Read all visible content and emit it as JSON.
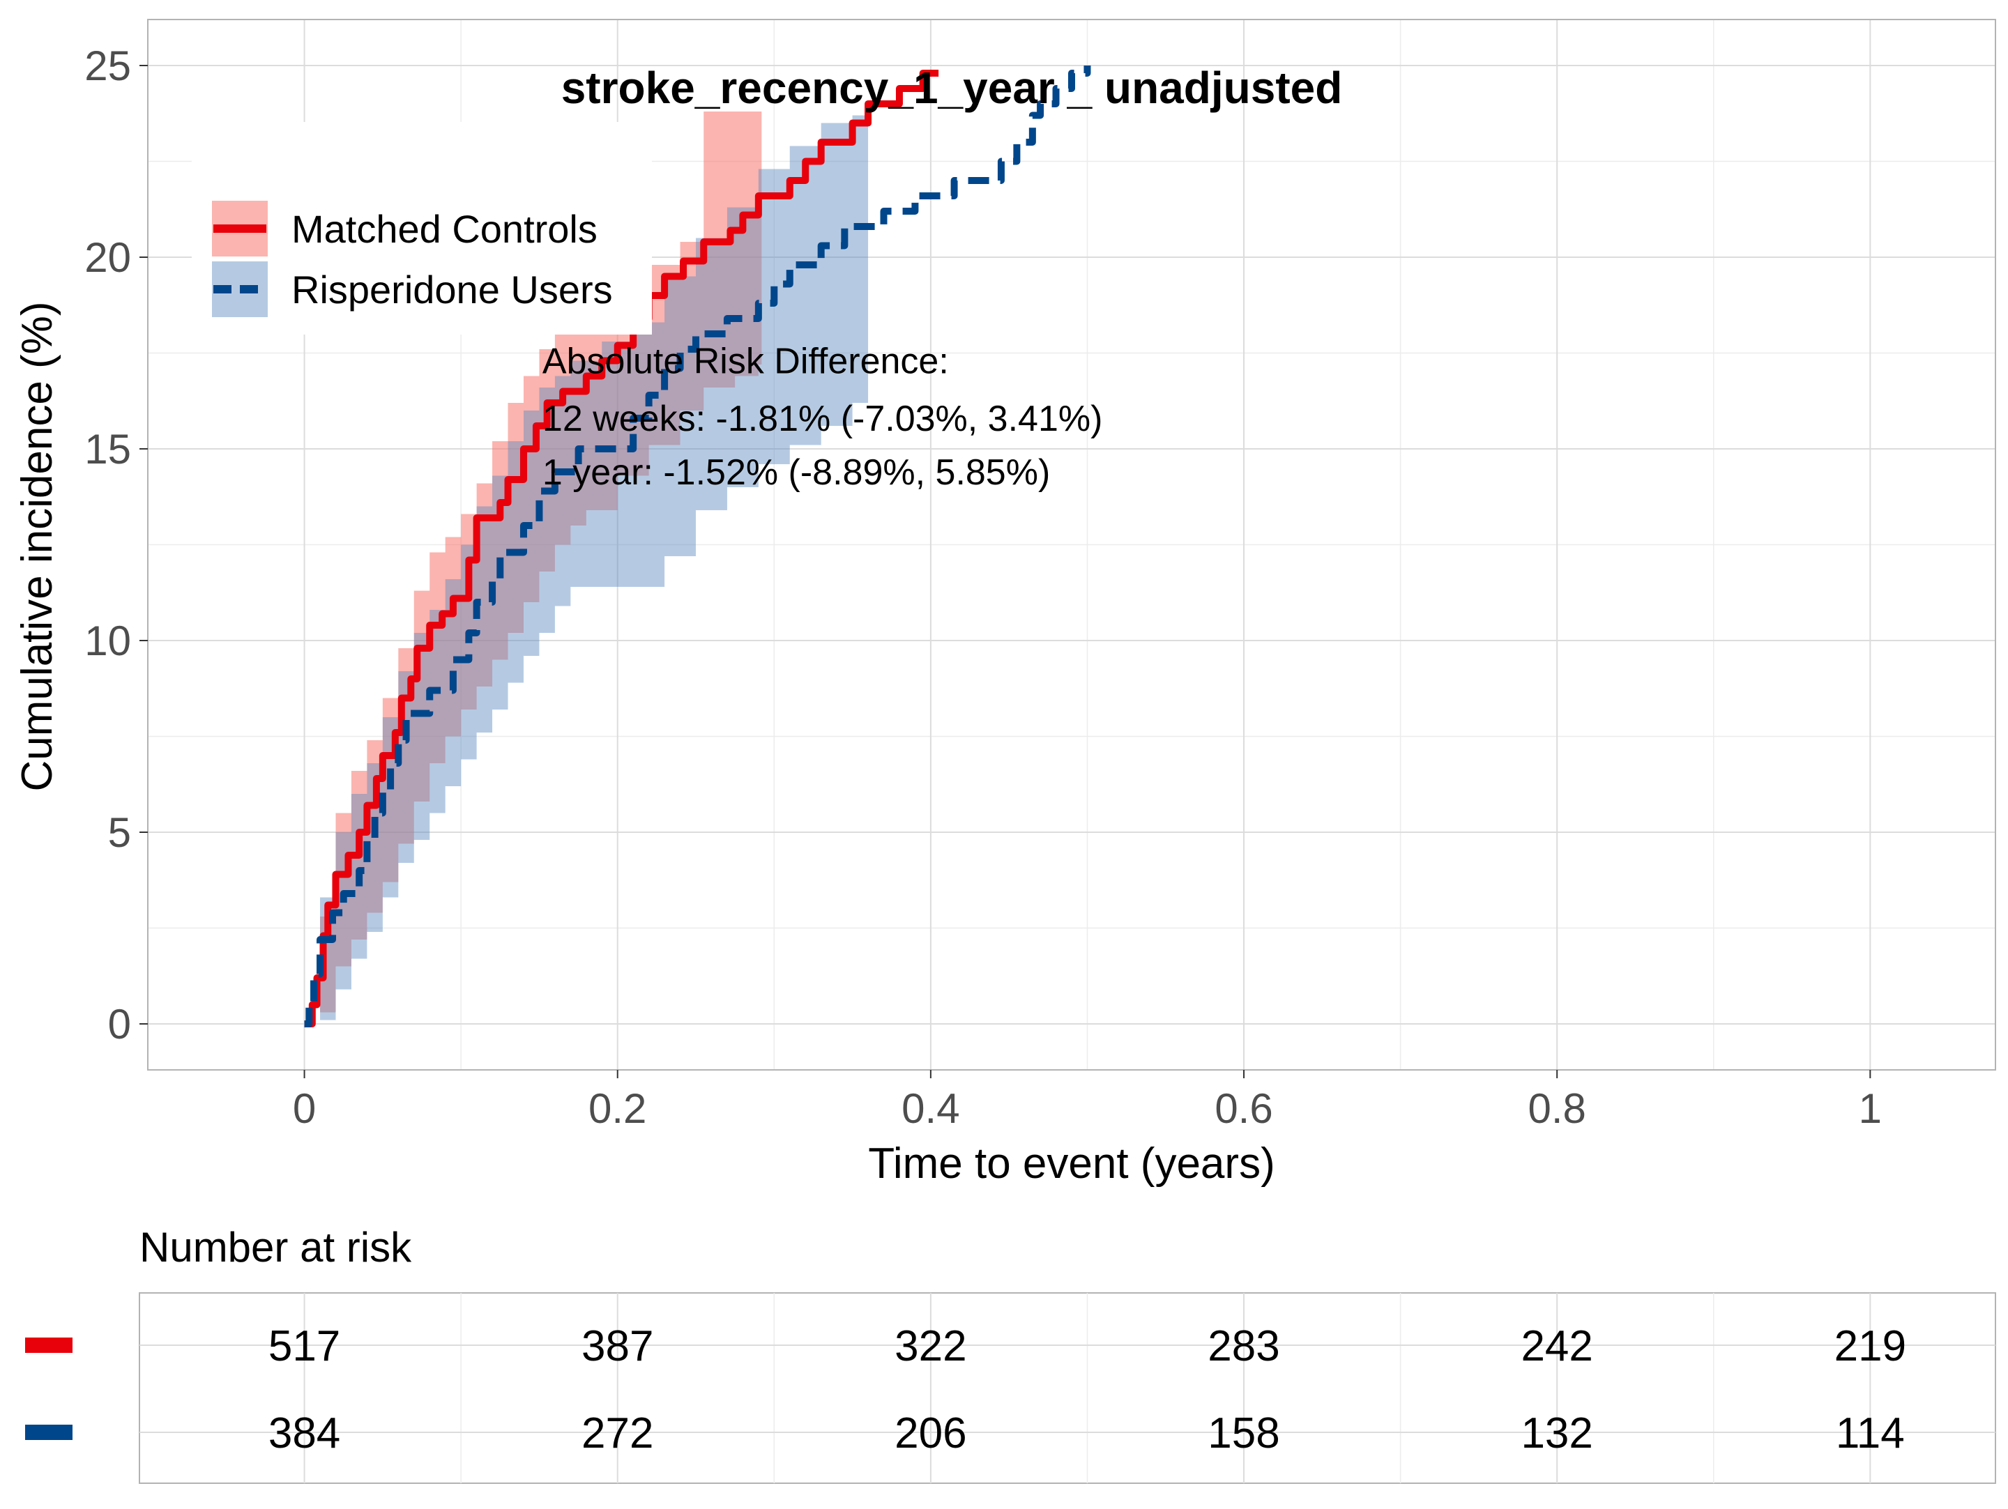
{
  "chart_data": {
    "type": "line",
    "subtype": "cumulative-incidence-step",
    "title": "stroke_recency_1_year _ unadjusted",
    "xlabel": "Time to event (years)",
    "ylabel": "Cumulative incidence (%)",
    "xlim": [
      -0.1,
      1.08
    ],
    "ylim": [
      -1.2,
      26.2
    ],
    "xticks": [
      0,
      0.2,
      0.4,
      0.6,
      0.8,
      1
    ],
    "xtick_labels": [
      "0",
      "0.2",
      "0.4",
      "0.6",
      "0.8",
      "1"
    ],
    "yticks": [
      0,
      5,
      10,
      15,
      20,
      25
    ],
    "ytick_labels": [
      "0",
      "5",
      "10",
      "15",
      "20",
      "25"
    ],
    "grid": true,
    "legend_position": "top-left",
    "series": [
      {
        "name": "Matched Controls",
        "color": "#E8000B",
        "line_style": "solid",
        "band_color": "#F8766D",
        "points": [
          [
            0,
            0
          ],
          [
            0.005,
            0
          ],
          [
            0.005,
            0.5
          ],
          [
            0.008,
            0.5
          ],
          [
            0.008,
            1.2
          ],
          [
            0.012,
            1.2
          ],
          [
            0.012,
            2.3
          ],
          [
            0.015,
            2.3
          ],
          [
            0.015,
            3.1
          ],
          [
            0.02,
            3.1
          ],
          [
            0.02,
            3.9
          ],
          [
            0.028,
            3.9
          ],
          [
            0.028,
            4.4
          ],
          [
            0.035,
            4.4
          ],
          [
            0.035,
            5.0
          ],
          [
            0.04,
            5.0
          ],
          [
            0.04,
            5.7
          ],
          [
            0.046,
            5.7
          ],
          [
            0.046,
            6.4
          ],
          [
            0.05,
            6.4
          ],
          [
            0.05,
            7.0
          ],
          [
            0.058,
            7.0
          ],
          [
            0.058,
            7.6
          ],
          [
            0.062,
            7.6
          ],
          [
            0.062,
            8.5
          ],
          [
            0.068,
            8.5
          ],
          [
            0.068,
            9.0
          ],
          [
            0.072,
            9.0
          ],
          [
            0.072,
            9.8
          ],
          [
            0.08,
            9.8
          ],
          [
            0.08,
            10.4
          ],
          [
            0.088,
            10.4
          ],
          [
            0.088,
            10.7
          ],
          [
            0.095,
            10.7
          ],
          [
            0.095,
            11.1
          ],
          [
            0.105,
            11.1
          ],
          [
            0.105,
            12.1
          ],
          [
            0.11,
            12.1
          ],
          [
            0.11,
            13.2
          ],
          [
            0.125,
            13.2
          ],
          [
            0.125,
            13.6
          ],
          [
            0.13,
            13.6
          ],
          [
            0.13,
            14.2
          ],
          [
            0.14,
            14.2
          ],
          [
            0.14,
            15.0
          ],
          [
            0.148,
            15.0
          ],
          [
            0.148,
            15.6
          ],
          [
            0.155,
            15.6
          ],
          [
            0.155,
            16.2
          ],
          [
            0.165,
            16.2
          ],
          [
            0.165,
            16.5
          ],
          [
            0.18,
            16.5
          ],
          [
            0.18,
            16.9
          ],
          [
            0.19,
            16.9
          ],
          [
            0.19,
            17.3
          ],
          [
            0.2,
            17.3
          ],
          [
            0.2,
            17.7
          ],
          [
            0.21,
            17.7
          ],
          [
            0.21,
            18.4
          ],
          [
            0.22,
            18.4
          ],
          [
            0.22,
            19.0
          ],
          [
            0.23,
            19.0
          ],
          [
            0.23,
            19.5
          ],
          [
            0.242,
            19.5
          ],
          [
            0.242,
            19.9
          ],
          [
            0.255,
            19.9
          ],
          [
            0.255,
            20.4
          ],
          [
            0.272,
            20.4
          ],
          [
            0.272,
            20.7
          ],
          [
            0.28,
            20.7
          ],
          [
            0.28,
            21.1
          ],
          [
            0.29,
            21.1
          ],
          [
            0.29,
            21.6
          ],
          [
            0.31,
            21.6
          ],
          [
            0.31,
            22.0
          ],
          [
            0.32,
            22.0
          ],
          [
            0.32,
            22.5
          ],
          [
            0.33,
            22.5
          ],
          [
            0.33,
            23.0
          ],
          [
            0.35,
            23.0
          ],
          [
            0.35,
            23.5
          ],
          [
            0.36,
            23.5
          ],
          [
            0.36,
            24.0
          ],
          [
            0.38,
            24.0
          ],
          [
            0.38,
            24.4
          ],
          [
            0.395,
            24.4
          ],
          [
            0.395,
            24.8
          ],
          [
            0.405,
            24.8
          ]
        ],
        "ci_band": [
          [
            0,
            0,
            0
          ],
          [
            0.01,
            0.3,
            2.8
          ],
          [
            0.02,
            1.5,
            5.5
          ],
          [
            0.03,
            2.2,
            6.6
          ],
          [
            0.04,
            2.9,
            7.4
          ],
          [
            0.05,
            3.7,
            8.5
          ],
          [
            0.06,
            4.7,
            9.8
          ],
          [
            0.07,
            5.8,
            11.3
          ],
          [
            0.08,
            6.8,
            12.3
          ],
          [
            0.09,
            7.5,
            12.7
          ],
          [
            0.1,
            8.2,
            13.3
          ],
          [
            0.11,
            8.8,
            14.1
          ],
          [
            0.12,
            9.5,
            15.2
          ],
          [
            0.13,
            10.2,
            16.2
          ],
          [
            0.14,
            11.0,
            16.9
          ],
          [
            0.15,
            11.8,
            17.6
          ],
          [
            0.16,
            12.5,
            18.0
          ],
          [
            0.17,
            13.0,
            18.3
          ],
          [
            0.18,
            13.4,
            18.8
          ],
          [
            0.2,
            14.3,
            19.3
          ],
          [
            0.22,
            15.1,
            19.8
          ],
          [
            0.24,
            16.0,
            20.4
          ],
          [
            0.255,
            16.6,
            23.8
          ],
          [
            0.275,
            16.9,
            23.8
          ],
          [
            0.29,
            17.2,
            23.8
          ],
          [
            0.292,
            17.2,
            23.8
          ]
        ]
      },
      {
        "name": "Risperidone Users",
        "color": "#00468B",
        "line_style": "dashed",
        "band_color": "#5A8ABE",
        "points": [
          [
            0,
            0
          ],
          [
            0.003,
            0
          ],
          [
            0.003,
            0.5
          ],
          [
            0.006,
            0.5
          ],
          [
            0.006,
            1.3
          ],
          [
            0.01,
            1.3
          ],
          [
            0.01,
            2.2
          ],
          [
            0.018,
            2.2
          ],
          [
            0.018,
            2.9
          ],
          [
            0.025,
            2.9
          ],
          [
            0.025,
            3.4
          ],
          [
            0.035,
            3.4
          ],
          [
            0.035,
            4.0
          ],
          [
            0.04,
            4.0
          ],
          [
            0.04,
            4.8
          ],
          [
            0.045,
            4.8
          ],
          [
            0.045,
            5.5
          ],
          [
            0.05,
            5.5
          ],
          [
            0.05,
            6.1
          ],
          [
            0.055,
            6.1
          ],
          [
            0.055,
            6.8
          ],
          [
            0.06,
            6.8
          ],
          [
            0.06,
            7.4
          ],
          [
            0.065,
            7.4
          ],
          [
            0.065,
            8.1
          ],
          [
            0.08,
            8.1
          ],
          [
            0.08,
            8.7
          ],
          [
            0.095,
            8.7
          ],
          [
            0.095,
            9.5
          ],
          [
            0.105,
            9.5
          ],
          [
            0.105,
            10.2
          ],
          [
            0.11,
            10.2
          ],
          [
            0.11,
            11.0
          ],
          [
            0.12,
            11.0
          ],
          [
            0.12,
            11.6
          ],
          [
            0.125,
            11.6
          ],
          [
            0.125,
            12.3
          ],
          [
            0.14,
            12.3
          ],
          [
            0.14,
            13.0
          ],
          [
            0.15,
            13.0
          ],
          [
            0.15,
            13.9
          ],
          [
            0.16,
            13.9
          ],
          [
            0.16,
            14.4
          ],
          [
            0.175,
            14.4
          ],
          [
            0.175,
            15.0
          ],
          [
            0.21,
            15.0
          ],
          [
            0.21,
            15.8
          ],
          [
            0.22,
            15.8
          ],
          [
            0.22,
            16.4
          ],
          [
            0.23,
            16.4
          ],
          [
            0.23,
            17.1
          ],
          [
            0.24,
            17.1
          ],
          [
            0.24,
            17.6
          ],
          [
            0.25,
            17.6
          ],
          [
            0.25,
            18.0
          ],
          [
            0.27,
            18.0
          ],
          [
            0.27,
            18.4
          ],
          [
            0.29,
            18.4
          ],
          [
            0.29,
            18.8
          ],
          [
            0.3,
            18.8
          ],
          [
            0.3,
            19.3
          ],
          [
            0.31,
            19.3
          ],
          [
            0.31,
            19.8
          ],
          [
            0.33,
            19.8
          ],
          [
            0.33,
            20.3
          ],
          [
            0.345,
            20.3
          ],
          [
            0.345,
            20.8
          ],
          [
            0.37,
            20.8
          ],
          [
            0.37,
            21.2
          ],
          [
            0.39,
            21.2
          ],
          [
            0.39,
            21.6
          ],
          [
            0.415,
            21.6
          ],
          [
            0.415,
            22.0
          ],
          [
            0.445,
            22.0
          ],
          [
            0.445,
            22.5
          ],
          [
            0.455,
            22.5
          ],
          [
            0.455,
            23.0
          ],
          [
            0.465,
            23.0
          ],
          [
            0.465,
            23.7
          ],
          [
            0.47,
            23.7
          ],
          [
            0.47,
            24.0
          ],
          [
            0.48,
            24.0
          ],
          [
            0.48,
            24.4
          ],
          [
            0.49,
            24.4
          ],
          [
            0.49,
            24.8
          ],
          [
            0.5,
            24.8
          ],
          [
            0.5,
            25.0
          ]
        ],
        "ci_band": [
          [
            0,
            0,
            0
          ],
          [
            0.01,
            0.1,
            3.3
          ],
          [
            0.02,
            0.9,
            5.0
          ],
          [
            0.03,
            1.7,
            6.0
          ],
          [
            0.04,
            2.4,
            6.8
          ],
          [
            0.05,
            3.3,
            8.0
          ],
          [
            0.06,
            4.2,
            9.2
          ],
          [
            0.07,
            4.8,
            10.2
          ],
          [
            0.08,
            5.5,
            10.8
          ],
          [
            0.09,
            6.2,
            11.6
          ],
          [
            0.1,
            6.9,
            12.5
          ],
          [
            0.11,
            7.6,
            13.5
          ],
          [
            0.12,
            8.2,
            14.3
          ],
          [
            0.13,
            8.9,
            15.2
          ],
          [
            0.14,
            9.6,
            16.0
          ],
          [
            0.15,
            10.2,
            16.6
          ],
          [
            0.16,
            10.9,
            16.9
          ],
          [
            0.17,
            11.4,
            17.3
          ],
          [
            0.19,
            11.4,
            17.8
          ],
          [
            0.21,
            11.4,
            18.3
          ],
          [
            0.23,
            12.2,
            19.5
          ],
          [
            0.25,
            13.4,
            20.5
          ],
          [
            0.27,
            14.0,
            21.3
          ],
          [
            0.29,
            14.6,
            22.3
          ],
          [
            0.31,
            15.1,
            22.9
          ],
          [
            0.33,
            15.6,
            23.5
          ],
          [
            0.35,
            16.2,
            23.7
          ],
          [
            0.36,
            16.2,
            23.7
          ]
        ]
      }
    ],
    "annotation": {
      "lines": [
        "Absolute Risk Difference:",
        "12 weeks: -1.81% (-7.03%, 3.41%)",
        "1 year: -1.52% (-8.89%, 5.85%)"
      ],
      "x": 0.152,
      "y_lines": [
        17.3,
        15.8,
        14.4
      ]
    },
    "risk_table": {
      "title": "Number at risk",
      "times": [
        0,
        0.2,
        0.4,
        0.6,
        0.8,
        1
      ],
      "rows": [
        {
          "series": "Matched Controls",
          "color": "#E8000B",
          "values": [
            "517",
            "387",
            "322",
            "283",
            "242",
            "219"
          ]
        },
        {
          "series": "Risperidone Users",
          "color": "#00468B",
          "values": [
            "384",
            "272",
            "206",
            "158",
            "132",
            "114"
          ]
        }
      ]
    }
  }
}
